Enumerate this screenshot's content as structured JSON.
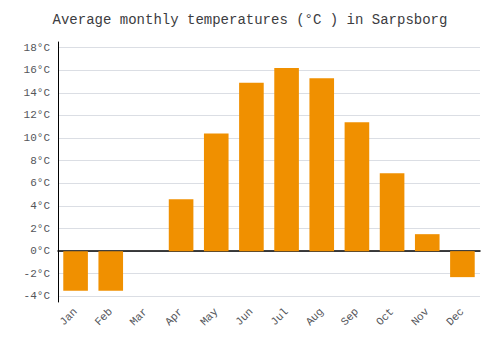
{
  "chart_data": {
    "type": "bar",
    "title": "Average monthly temperatures (°C ) in Sarpsborg",
    "categories": [
      "Jan",
      "Feb",
      "Mar",
      "Apr",
      "May",
      "Jun",
      "Jul",
      "Aug",
      "Sep",
      "Oct",
      "Nov",
      "Dec"
    ],
    "values": [
      -3.5,
      -3.5,
      0.0,
      4.6,
      10.4,
      14.9,
      16.2,
      15.3,
      11.4,
      6.9,
      1.5,
      -2.3
    ],
    "color": "#F09000",
    "ylim": [
      -4.5,
      18.5
    ],
    "yticks": [
      {
        "value": -4,
        "label": "-4°C"
      },
      {
        "value": -2,
        "label": "-2°C"
      },
      {
        "value": 0,
        "label": "0°C"
      },
      {
        "value": 2,
        "label": "2°C"
      },
      {
        "value": 4,
        "label": "4°C"
      },
      {
        "value": 6,
        "label": "6°C"
      },
      {
        "value": 8,
        "label": "8°C"
      },
      {
        "value": 10,
        "label": "10°C"
      },
      {
        "value": 12,
        "label": "12°C"
      },
      {
        "value": 14,
        "label": "14°C"
      },
      {
        "value": 16,
        "label": "16°C"
      },
      {
        "value": 18,
        "label": "18°C"
      }
    ],
    "grid": true
  }
}
